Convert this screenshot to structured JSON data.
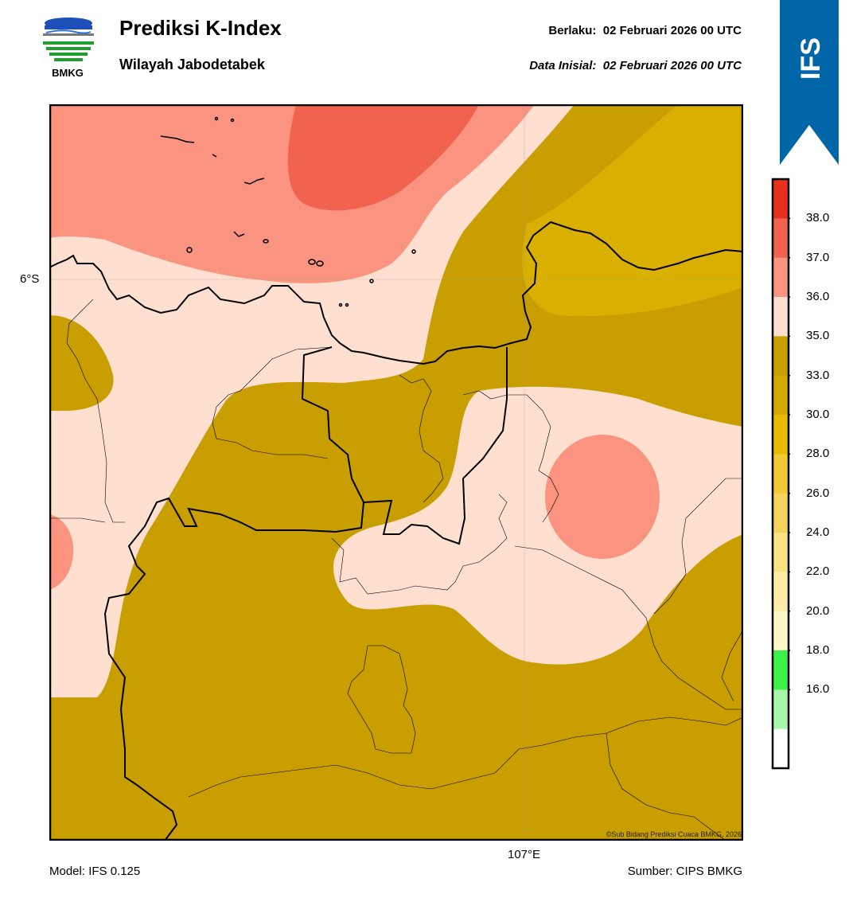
{
  "header": {
    "title": "Prediksi K-Index",
    "subtitle": "Wilayah Jabodetabek",
    "valid_label": "Berlaku:",
    "valid_time": "02 Februari 2026 00 UTC",
    "init_label": "Data Inisial:",
    "init_time": "02 Februari 2026 00 UTC"
  },
  "logo": {
    "text": "BMKG"
  },
  "ribbon": {
    "text": "IFS",
    "color": "#0066a8"
  },
  "map": {
    "lat_label": "6°S",
    "lon_label": "107°E",
    "copyright": "©Sub Bidang Prediksi Cuaca BMKG, 2026"
  },
  "colorbar": {
    "ticks": [
      "38.0",
      "37.0",
      "36.0",
      "35.0",
      "33.0",
      "30.0",
      "28.0",
      "26.0",
      "24.0",
      "22.0",
      "20.0",
      "18.0",
      "16.0"
    ],
    "bands": [
      "#e8301f",
      "#f2634f",
      "#fa9480",
      "#fedfd0",
      "#c99e00",
      "#d6a900",
      "#e8ba00",
      "#f1c934",
      "#f5d45e",
      "#f9e184",
      "#fceca6",
      "#fdf6c6",
      "#3cf246",
      "#a6f7a9",
      "#ffffff"
    ]
  },
  "footer": {
    "model": "Model: IFS 0.125",
    "source": "Sumber: CIPS BMKG"
  }
}
